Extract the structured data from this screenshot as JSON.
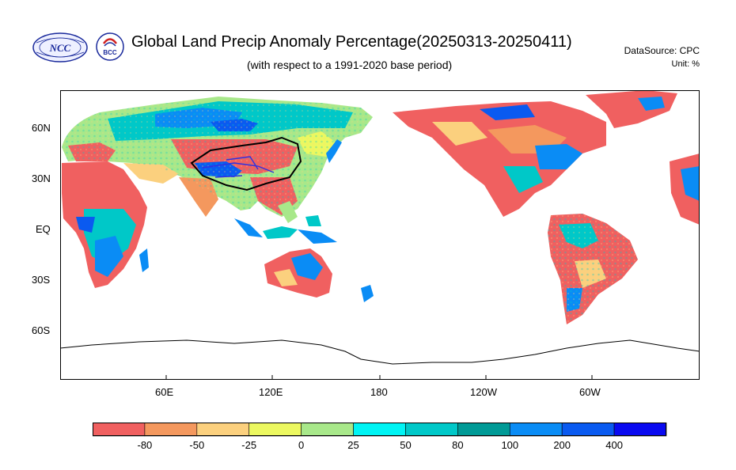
{
  "title": "Global Land Precip Anomaly Percentage(20250313-20250411)",
  "subtitle": "(with respect to a 1991-2020 base period)",
  "data_source": "DataSource:  CPC",
  "unit": "Unit:  %",
  "logos": [
    {
      "icon": "ncc-logo-icon",
      "text": "NCC"
    },
    {
      "icon": "bcc-logo-icon",
      "text": "BCC"
    }
  ],
  "map": {
    "projection": "cylindrical equidistant, centered 150E",
    "lat_ticks": [
      "60N",
      "30N",
      "EQ",
      "30S",
      "60S"
    ],
    "lon_ticks": [
      "60E",
      "120E",
      "180",
      "120W",
      "60W"
    ]
  },
  "colorbar": {
    "labels": [
      "-80",
      "-50",
      "-25",
      "0",
      "25",
      "50",
      "80",
      "100",
      "200",
      "400"
    ],
    "colors": [
      "#f06060",
      "#f4985e",
      "#fbd07e",
      "#ecf860",
      "#a8e88a",
      "#00f4f4",
      "#00c8c8",
      "#009a96",
      "#0a8cf5",
      "#0a5af0",
      "#0a0af0"
    ]
  }
}
